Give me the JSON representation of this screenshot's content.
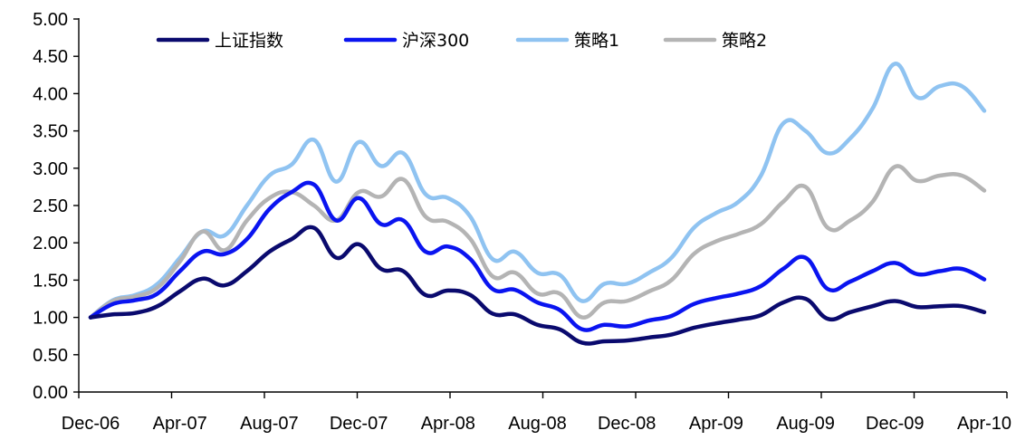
{
  "chart_data": {
    "type": "line",
    "title": "",
    "xlabel": "",
    "ylabel": "",
    "ylim": [
      0,
      5
    ],
    "y_ticks": [
      "0.00",
      "0.50",
      "1.00",
      "1.50",
      "2.00",
      "2.50",
      "3.00",
      "3.50",
      "4.00",
      "4.50",
      "5.00"
    ],
    "x_ticks": [
      "Dec-06",
      "Apr-07",
      "Aug-07",
      "Dec-07",
      "Apr-08",
      "Aug-08",
      "Dec-08",
      "Apr-09",
      "Aug-09",
      "Dec-09",
      "Apr-10"
    ],
    "grid": false,
    "legend_position": "top",
    "x": [
      "Dec-06",
      "Jan-07",
      "Feb-07",
      "Mar-07",
      "Apr-07",
      "May-07",
      "Jun-07",
      "Jul-07",
      "Aug-07",
      "Sep-07",
      "Oct-07",
      "Nov-07",
      "Dec-07",
      "Jan-08",
      "Feb-08",
      "Mar-08",
      "Apr-08",
      "May-08",
      "Jun-08",
      "Jul-08",
      "Aug-08",
      "Sep-08",
      "Oct-08",
      "Nov-08",
      "Dec-08",
      "Jan-09",
      "Feb-09",
      "Mar-09",
      "Apr-09",
      "May-09",
      "Jun-09",
      "Jul-09",
      "Aug-09",
      "Sep-09",
      "Oct-09",
      "Nov-09",
      "Dec-09",
      "Jan-10",
      "Feb-10",
      "Mar-10",
      "Apr-10"
    ],
    "series": [
      {
        "name": "上证指数",
        "color": "#0a0a6e",
        "values": [
          1.0,
          1.04,
          1.06,
          1.15,
          1.35,
          1.52,
          1.43,
          1.62,
          1.88,
          2.05,
          2.2,
          1.8,
          1.98,
          1.65,
          1.62,
          1.3,
          1.36,
          1.3,
          1.05,
          1.04,
          0.9,
          0.84,
          0.66,
          0.68,
          0.69,
          0.73,
          0.77,
          0.86,
          0.92,
          0.97,
          1.03,
          1.2,
          1.25,
          0.98,
          1.07,
          1.15,
          1.22,
          1.14,
          1.15,
          1.15,
          1.07
        ]
      },
      {
        "name": "沪深300",
        "color": "#0a14f0",
        "values": [
          1.0,
          1.18,
          1.23,
          1.32,
          1.62,
          1.88,
          1.85,
          2.05,
          2.45,
          2.68,
          2.78,
          2.3,
          2.6,
          2.25,
          2.3,
          1.88,
          1.95,
          1.78,
          1.38,
          1.37,
          1.2,
          1.1,
          0.84,
          0.9,
          0.88,
          0.96,
          1.02,
          1.18,
          1.26,
          1.32,
          1.42,
          1.65,
          1.8,
          1.38,
          1.48,
          1.62,
          1.73,
          1.58,
          1.62,
          1.65,
          1.51
        ]
      },
      {
        "name": "策略1",
        "color": "#8fc3f1",
        "values": [
          1.0,
          1.23,
          1.3,
          1.45,
          1.8,
          2.15,
          2.1,
          2.5,
          2.9,
          3.05,
          3.38,
          2.82,
          3.35,
          3.03,
          3.2,
          2.65,
          2.6,
          2.35,
          1.78,
          1.88,
          1.6,
          1.57,
          1.22,
          1.45,
          1.45,
          1.6,
          1.8,
          2.2,
          2.4,
          2.55,
          2.9,
          3.6,
          3.5,
          3.2,
          3.4,
          3.8,
          4.4,
          3.95,
          4.1,
          4.1,
          3.77
        ]
      },
      {
        "name": "策略2",
        "color": "#b4b4b4",
        "values": [
          1.0,
          1.22,
          1.28,
          1.4,
          1.75,
          2.15,
          1.9,
          2.3,
          2.6,
          2.68,
          2.5,
          2.3,
          2.68,
          2.62,
          2.85,
          2.35,
          2.28,
          2.05,
          1.55,
          1.6,
          1.32,
          1.32,
          1.0,
          1.2,
          1.22,
          1.35,
          1.5,
          1.85,
          2.02,
          2.12,
          2.25,
          2.55,
          2.75,
          2.2,
          2.3,
          2.55,
          3.02,
          2.83,
          2.9,
          2.9,
          2.7
        ]
      }
    ]
  }
}
